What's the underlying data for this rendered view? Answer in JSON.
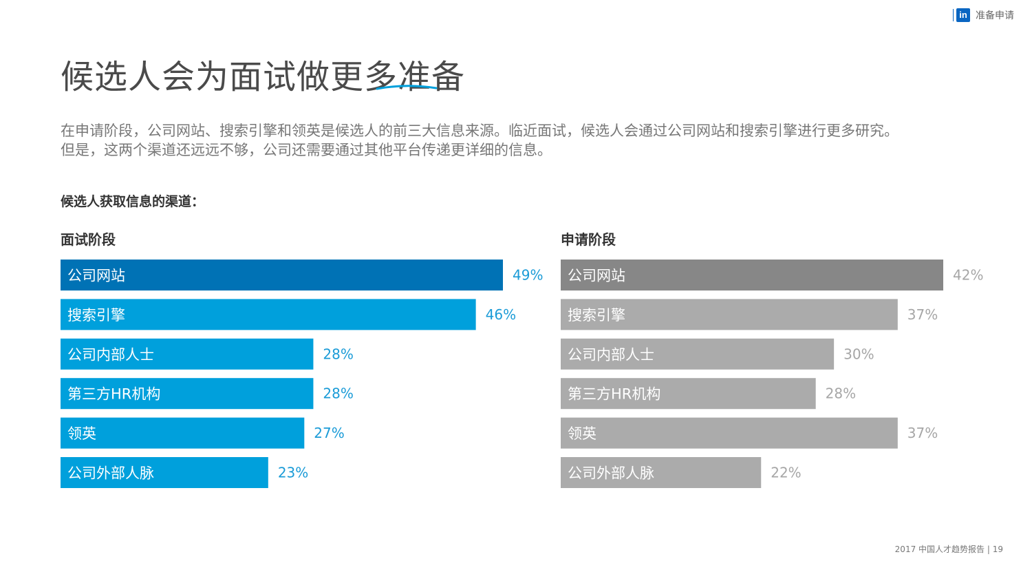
{
  "header": {
    "brand_logo": "in",
    "brand_label": "准备申请"
  },
  "title": "候选人会为面试做更多准备",
  "intro": [
    "在申请阶段，公司网站、搜索引擎和领英是候选人的前三大信息来源。临近面试，候选人会通过公司网站和搜索引擎进行更多研究。",
    "但是，这两个渠道还远远不够，公司还需要通过其他平台传递更详细的信息。"
  ],
  "subheading": "候选人获取信息的渠道：",
  "colors": {
    "interview_first": "#0072b5",
    "interview_rest": "#00a0dc",
    "interview_value": "#1a9bd7",
    "apply_first": "#878787",
    "apply_rest": "#ababab",
    "apply_value": "#a6a6a6",
    "title_underline": "#00a0dc"
  },
  "chart_data": [
    {
      "type": "bar",
      "orientation": "horizontal",
      "title": "面试阶段",
      "categories": [
        "公司网站",
        "搜索引擎",
        "公司内部人士",
        "第三方HR机构",
        "领英",
        "公司外部人脉"
      ],
      "values": [
        49,
        46,
        28,
        28,
        27,
        23
      ],
      "value_labels": [
        "49%",
        "46%",
        "28%",
        "28%",
        "27%",
        "23%"
      ],
      "unit": "%",
      "xlim": [
        0,
        49
      ]
    },
    {
      "type": "bar",
      "orientation": "horizontal",
      "title": "申请阶段",
      "categories": [
        "公司网站",
        "搜索引擎",
        "公司内部人士",
        "第三方HR机构",
        "领英",
        "公司外部人脉"
      ],
      "values": [
        42,
        37,
        30,
        28,
        37,
        22
      ],
      "value_labels": [
        "42%",
        "37%",
        "30%",
        "28%",
        "37%",
        "22%"
      ],
      "unit": "%",
      "xlim": [
        0,
        42
      ]
    }
  ],
  "footer": {
    "text": "2017 中国人才趋势报告 |",
    "page": "19"
  }
}
